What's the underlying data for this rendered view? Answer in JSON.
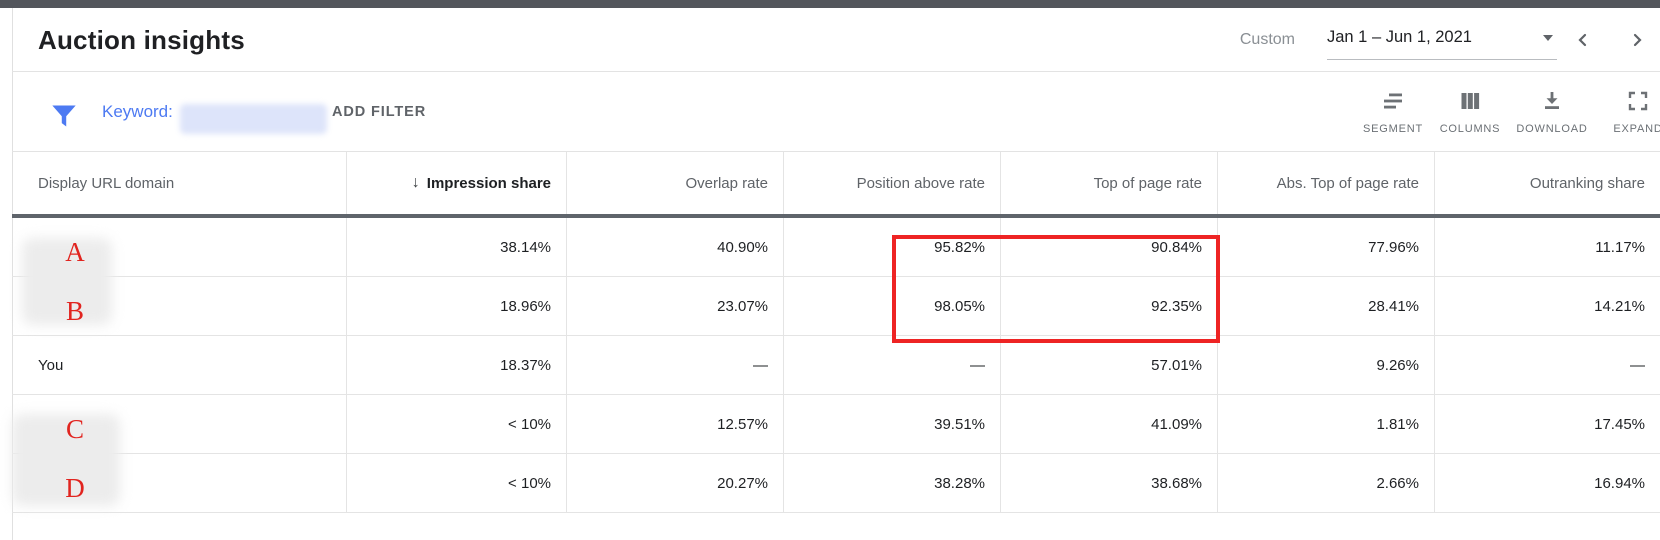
{
  "header": {
    "title": "Auction insights",
    "date_label": "Custom",
    "date_value": "Jan 1 – Jun 1, 2021"
  },
  "filter_bar": {
    "keyword_label": "Keyword:",
    "add_filter_label": "ADD FILTER",
    "tools": [
      {
        "icon": "segment-icon",
        "label": "SEGMENT"
      },
      {
        "icon": "columns-icon",
        "label": "COLUMNS"
      },
      {
        "icon": "download-icon",
        "label": "DOWNLOAD"
      },
      {
        "icon": "expand-icon",
        "label": "EXPAND"
      }
    ]
  },
  "table": {
    "columns": [
      "Display URL domain",
      "Impression share",
      "Overlap rate",
      "Position above rate",
      "Top of page rate",
      "Abs. Top of page rate",
      "Outranking share"
    ],
    "sorted_column": "Impression share",
    "sort_icon": "arrow-down-icon",
    "rows": [
      {
        "domain": "A",
        "masked": true,
        "values": [
          "38.14%",
          "40.90%",
          "95.82%",
          "90.84%",
          "77.96%",
          "11.17%"
        ]
      },
      {
        "domain": "B",
        "masked": true,
        "values": [
          "18.96%",
          "23.07%",
          "98.05%",
          "92.35%",
          "28.41%",
          "14.21%"
        ]
      },
      {
        "domain": "You",
        "masked": false,
        "values": [
          "18.37%",
          "—",
          "—",
          "57.01%",
          "9.26%",
          "—"
        ]
      },
      {
        "domain": "C",
        "masked": true,
        "values": [
          "< 10%",
          "12.57%",
          "39.51%",
          "41.09%",
          "1.81%",
          "17.45%"
        ]
      },
      {
        "domain": "D",
        "masked": true,
        "values": [
          "< 10%",
          "20.27%",
          "38.28%",
          "38.68%",
          "2.66%",
          "16.94%"
        ]
      }
    ]
  },
  "annotation": {
    "highlight_columns": [
      "Position above rate",
      "Top of page rate"
    ],
    "highlight_rows": [
      "A",
      "B"
    ],
    "box_color": "#ee2424"
  },
  "colors": {
    "accent_blue": "#4d7af2",
    "masked_letter_red": "#e1241f",
    "header_rule_dark": "#5f646b",
    "top_strip": "#53565c"
  }
}
